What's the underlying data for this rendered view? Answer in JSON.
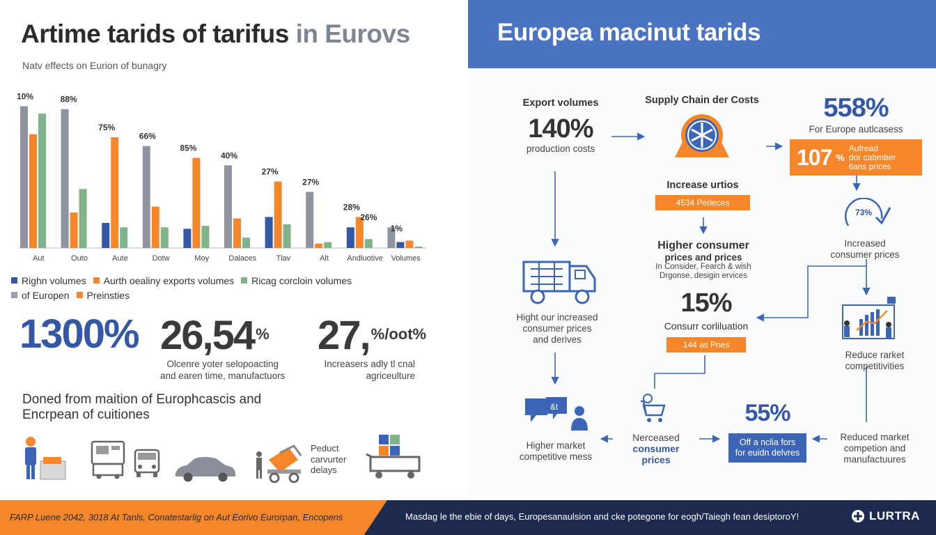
{
  "left": {
    "title_main": "Artime tarids of tarifus",
    "title_accent": "in Eurovs",
    "subtitle": "Natv effects on Eurion of bunagry",
    "legend_row1": [
      {
        "label": "Righn volumes",
        "color": "#3457a6"
      },
      {
        "label": "Aurth oealiny exports volumes",
        "color": "#f5862a"
      },
      {
        "label": "Ricag corcloin volumes",
        "color": "#7fb38a"
      }
    ],
    "legend_row2": [
      {
        "label": "of Europen",
        "color": "#9aa0ab"
      },
      {
        "label": "Preinsties",
        "color": "#f5862a"
      }
    ],
    "stats": [
      {
        "value": "1300%",
        "suffix": "",
        "desc": [
          "",
          ""
        ],
        "color": "#3457a6"
      },
      {
        "value": "26,54",
        "suffix": "%",
        "desc": [
          "Olcenre yoter selopoacting",
          "and earen time, manufactuors"
        ],
        "color": "#3a3a3a"
      },
      {
        "value": "27,",
        "suffix": "%/oot%",
        "desc": [
          "Increasers adly tl cnal",
          "agriceulture"
        ],
        "color": "#3a3a3a"
      }
    ],
    "bottom_text": [
      "Doned from maition of Europhcascis and",
      "Encrpean of cuitiones"
    ],
    "delay_text": [
      "Peduct",
      "carvurter",
      "delays"
    ]
  },
  "chart_data": {
    "type": "bar",
    "categories": [
      "Aut",
      "Outo",
      "Aute",
      "Dotw",
      "Moy",
      "Dalaces",
      "Tlav",
      "Alt",
      "Andluotive",
      "Volumes"
    ],
    "value_labels": [
      "10%",
      "88%",
      "75%",
      "66%",
      "85%",
      "40%",
      "27%",
      "27%",
      "28%",
      "26%",
      "1%"
    ],
    "series": [
      {
        "color": "#8e94a0",
        "values": [
          96,
          94,
          0,
          69,
          0,
          56,
          0,
          38,
          0,
          14
        ]
      },
      {
        "color": "#3457a6",
        "values": [
          0,
          0,
          17,
          0,
          13,
          0,
          21,
          0,
          14,
          4
        ]
      },
      {
        "color": "#f5862a",
        "values": [
          77,
          24,
          75,
          28,
          61,
          20,
          45,
          3,
          21,
          5
        ]
      },
      {
        "color": "#7fb38a",
        "values": [
          91,
          40,
          14,
          14,
          15,
          7,
          16,
          4,
          6,
          1
        ]
      }
    ],
    "ylim": [
      0,
      100
    ]
  },
  "right": {
    "title": "Europea macinut tarids",
    "export": {
      "label": "Export volumes",
      "value": "140%",
      "sub": "production costs"
    },
    "supply": {
      "label": "Supply Chain der Costs"
    },
    "europe": {
      "value": "558%",
      "sub": "For Europe autlcasess",
      "box_value": "107",
      "box_sym": "%",
      "box_text": [
        "Aufread",
        "dor cabmber",
        "tlans prices"
      ]
    },
    "increase": {
      "label": "Increase urtios",
      "box": "4534 Perleces"
    },
    "higher_prices": {
      "label": "Higher consumer",
      "label2": "prices and prices",
      "sub1": "In Consider, Fearch & wish",
      "sub2": "Drgonse, desigin ervices"
    },
    "gauge": {
      "value": "73%"
    },
    "increased": {
      "lines": [
        "Increased",
        "consumer prices"
      ]
    },
    "truck_text": [
      "Hight our increased",
      "consumer prices",
      "and derives"
    ],
    "fifteen": {
      "value": "15%",
      "label": "Consurr corliluation",
      "box": "144 as Pnes"
    },
    "reduce": {
      "lines": [
        "Reduce rarket",
        "competitivities"
      ]
    },
    "higher_market": {
      "lines": [
        "Higher market",
        "competitive mess"
      ]
    },
    "nerceased": {
      "lines": [
        "Nerceased"
      ],
      "bold": [
        "consumer",
        "prices"
      ]
    },
    "fifty_five": {
      "value": "55%",
      "box": [
        "Off a nclia fors",
        "for euidn delvres"
      ]
    },
    "reduced_market": {
      "lines": [
        "Reduced market",
        "competion and",
        "manufactuures"
      ]
    }
  },
  "footer": {
    "left_text": "FARP Luene 2042, 3018 At Tanls, Conatestarlig on Aut Eorivo Eurorpan, Encopens",
    "mid_text": "Masdag le the ebie of days, Europesanaulsion and cke potegone for eogh/Taiegh fean desiptoroY!",
    "brand": "LURTRA"
  }
}
